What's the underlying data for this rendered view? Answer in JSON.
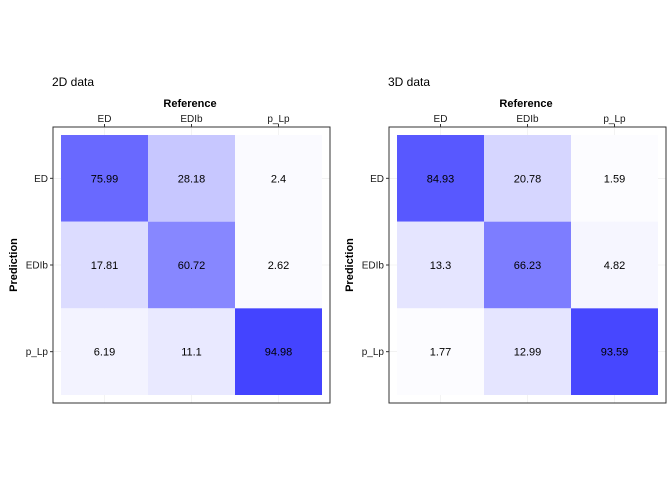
{
  "chart_data": [
    {
      "type": "heatmap",
      "title": "2D data",
      "xlabel": "Reference",
      "ylabel": "Prediction",
      "x_categories": [
        "ED",
        "EDIb",
        "p_Lp"
      ],
      "y_categories": [
        "ED",
        "EDIb",
        "p_Lp"
      ],
      "values": [
        [
          75.99,
          28.18,
          2.4
        ],
        [
          17.81,
          60.72,
          2.62
        ],
        [
          6.19,
          11.1,
          94.98
        ]
      ],
      "value_range": [
        0,
        100
      ],
      "x_axis_position": "top",
      "grid": true
    },
    {
      "type": "heatmap",
      "title": "3D data",
      "xlabel": "Reference",
      "ylabel": "Prediction",
      "x_categories": [
        "ED",
        "EDIb",
        "p_Lp"
      ],
      "y_categories": [
        "ED",
        "EDIb",
        "p_Lp"
      ],
      "values": [
        [
          84.93,
          20.78,
          1.59
        ],
        [
          13.3,
          66.23,
          4.82
        ],
        [
          1.77,
          12.99,
          93.59
        ]
      ],
      "value_range": [
        0,
        100
      ],
      "x_axis_position": "top",
      "grid": true
    }
  ],
  "colors": {
    "low": "#ffffff",
    "high": "#3a3aff",
    "panel_border": "#333333",
    "grid": "#ebebeb",
    "text": "#000000"
  }
}
